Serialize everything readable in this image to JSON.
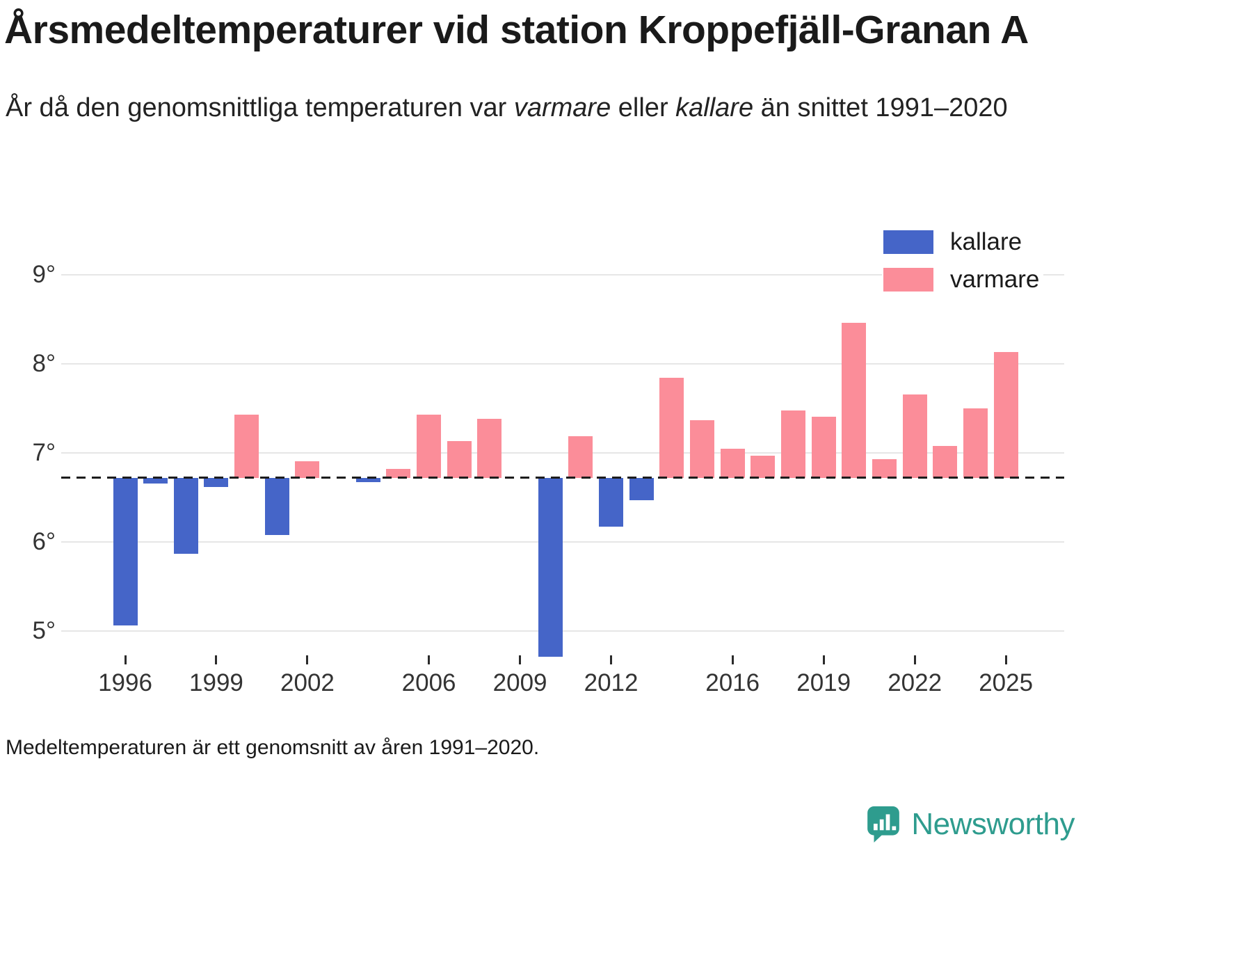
{
  "title": "Årsmedeltemperaturer vid station Kroppefjäll-Granan A",
  "subtitle": {
    "part1": "År då den genomsnittliga temperaturen var ",
    "italic1": "varmare",
    "part2": " eller ",
    "italic2": "kallare",
    "part3": " än snittet 1991–2020"
  },
  "legend": {
    "items": [
      {
        "label": "kallare",
        "color": "#4565c8"
      },
      {
        "label": "varmare",
        "color": "#fb8d99"
      }
    ]
  },
  "footnote": "Medeltemperaturen är ett genomsnitt av åren 1991–2020.",
  "logo": {
    "text": "Newsworthy",
    "color": "#2e9c8e"
  },
  "chart_data": {
    "type": "bar",
    "title": "Årsmedeltemperaturer vid station Kroppefjäll-Granan A",
    "baseline": {
      "value": 6.72,
      "label": "snittet 1991–2020"
    },
    "years": [
      1996,
      1997,
      1998,
      1999,
      2000,
      2001,
      2002,
      2003,
      2004,
      2005,
      2006,
      2007,
      2008,
      2009,
      2010,
      2011,
      2012,
      2013,
      2014,
      2015,
      2016,
      2017,
      2018,
      2019,
      2020,
      2021,
      2022,
      2023,
      2024,
      2025
    ],
    "values": [
      5.06,
      6.66,
      5.87,
      6.62,
      7.43,
      6.08,
      6.91,
      null,
      6.67,
      6.82,
      7.43,
      7.13,
      7.38,
      null,
      4.71,
      7.19,
      6.17,
      6.47,
      7.84,
      7.37,
      7.05,
      6.97,
      7.48,
      7.41,
      8.46,
      6.93,
      7.66,
      7.08,
      7.5,
      8.13
    ],
    "series_colors": {
      "kallare": "#4565c8",
      "varmare": "#fb8d99"
    },
    "y_ticks": [
      5,
      6,
      7,
      8,
      9
    ],
    "y_tick_labels": [
      "5°",
      "6°",
      "7°",
      "8°",
      "9°"
    ],
    "x_tick_years": [
      1996,
      1999,
      2002,
      2006,
      2009,
      2012,
      2016,
      2019,
      2022,
      2025
    ],
    "ylim": [
      4.6,
      9.3
    ],
    "legend_position": "top-right",
    "grid": true
  }
}
